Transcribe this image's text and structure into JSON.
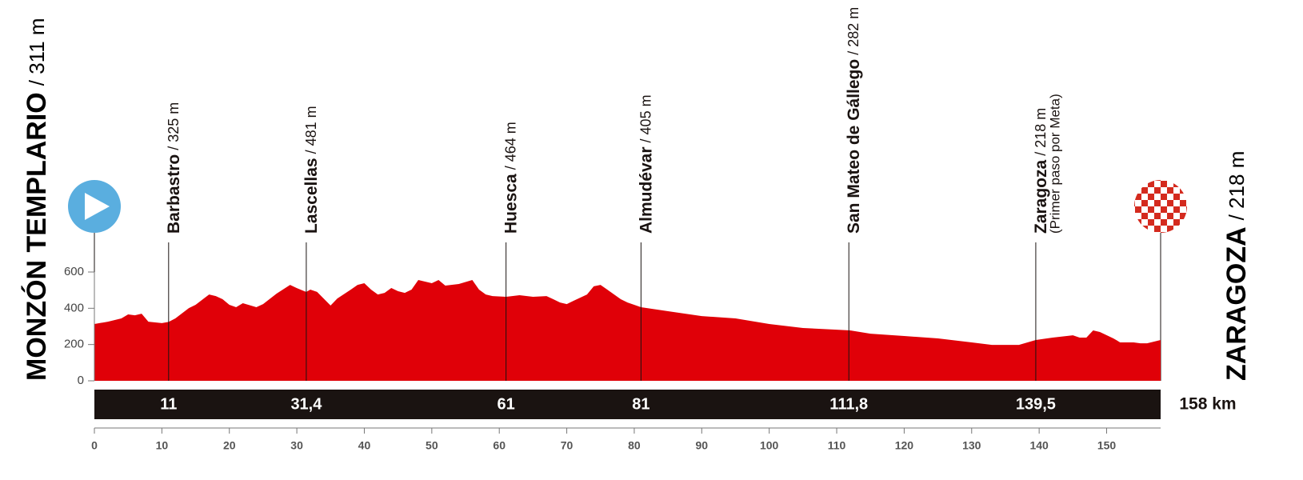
{
  "chart_data": {
    "type": "area",
    "start": {
      "name": "MONZÓN TEMPLARIO",
      "alt": "/ 311 m"
    },
    "finish": {
      "name": "ZARAGOZA",
      "alt": "/ 218 m"
    },
    "total": "158 km",
    "places": [
      {
        "km": {
          "value": 11,
          "label": "11"
        },
        "name": "Barbastro",
        "alt": "/ 325 m"
      },
      {
        "km": {
          "value": 31.4,
          "label": "31,4"
        },
        "name": "Lascellas",
        "alt": "/ 481 m"
      },
      {
        "km": {
          "value": 61,
          "label": "61"
        },
        "name": "Huesca",
        "alt": "/ 464 m"
      },
      {
        "km": {
          "value": 81,
          "label": "81"
        },
        "name": "Almudévar",
        "alt": "/ 405 m"
      },
      {
        "km": {
          "value": 111.8,
          "label": "111,8"
        },
        "name": "San Mateo de Gállego",
        "alt": "/ 282 m"
      },
      {
        "km": {
          "value": 139.5,
          "label": "139,5"
        },
        "name": "Zaragoza",
        "alt": "/ 218 m",
        "note": "(Primer paso por Meta)"
      }
    ],
    "x": [
      0,
      2,
      4,
      5,
      6,
      7,
      8,
      10,
      11,
      12,
      14,
      15,
      17,
      18,
      19,
      20,
      21,
      22,
      24,
      25,
      27,
      29,
      30,
      31.4,
      32,
      33,
      35,
      36,
      38,
      39,
      40,
      41,
      42,
      43,
      44,
      45,
      46,
      47,
      48,
      50,
      51,
      52,
      54,
      56,
      57,
      58,
      59,
      61,
      63,
      65,
      67,
      68,
      69,
      70,
      71,
      73,
      74,
      75,
      76,
      78,
      79,
      81,
      85,
      90,
      95,
      100,
      105,
      110,
      112,
      115,
      120,
      125,
      130,
      133,
      137,
      139.5,
      142,
      145,
      146,
      147,
      148,
      149,
      151,
      152,
      154,
      155,
      156,
      158
    ],
    "values": [
      313,
      326,
      344,
      366,
      361,
      370,
      326,
      318,
      325,
      344,
      401,
      419,
      476,
      467,
      450,
      419,
      406,
      428,
      406,
      423,
      481,
      529,
      511,
      490,
      503,
      490,
      415,
      454,
      503,
      529,
      538,
      503,
      476,
      485,
      512,
      494,
      485,
      503,
      556,
      538,
      556,
      525,
      534,
      556,
      503,
      476,
      467,
      463,
      472,
      463,
      467,
      450,
      432,
      423,
      441,
      476,
      521,
      529,
      503,
      450,
      432,
      406,
      384,
      357,
      344,
      313,
      291,
      282,
      278,
      260,
      247,
      234,
      212,
      198,
      198,
      225,
      238,
      251,
      238,
      238,
      278,
      269,
      234,
      212,
      212,
      207,
      207,
      225
    ],
    "color": "#e00008",
    "xlim": [
      0,
      158
    ],
    "xticks": [
      0,
      10,
      20,
      30,
      40,
      50,
      60,
      70,
      80,
      90,
      100,
      110,
      120,
      130,
      140,
      150
    ],
    "ylim": [
      0,
      600
    ],
    "yticks": [
      0,
      200,
      400,
      600
    ]
  }
}
